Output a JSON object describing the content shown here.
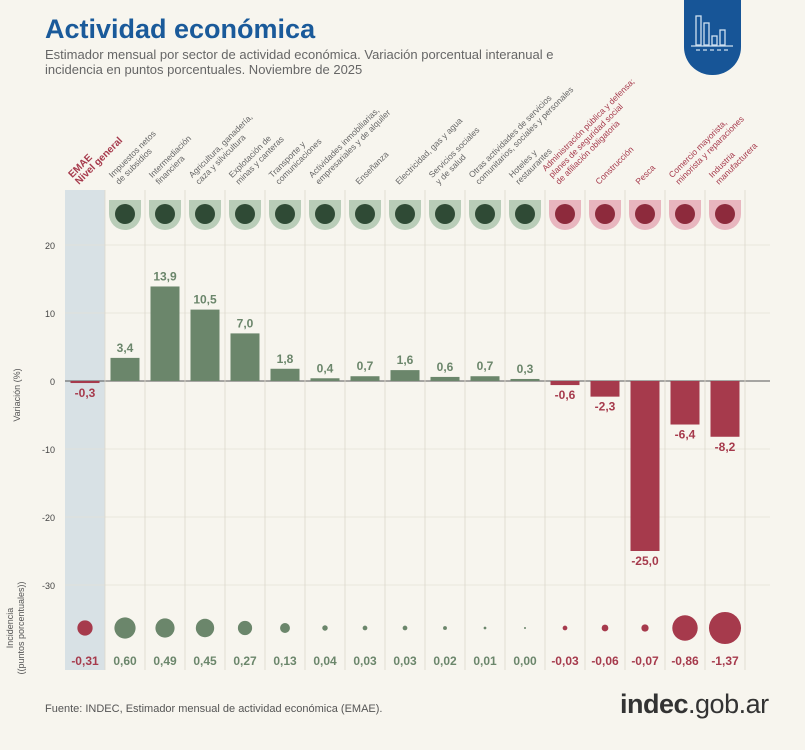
{
  "header": {
    "title": "Actividad económica",
    "subtitle": "Estimador mensual por sector de actividad económica. Variación porcentual interanual e incidencia en puntos porcentuales. Noviembre de 2025"
  },
  "footer": {
    "source": "Fuente: INDEC, Estimador mensual de actividad económica (EMAE).",
    "logo_main": "indec",
    "logo_suffix": ".gob.ar"
  },
  "colors": {
    "positive": "#6b866b",
    "negative": "#a63a4c",
    "highlight": "#d2dde3",
    "title": "#1a5a9a",
    "badge": "#175597"
  },
  "chart_data": {
    "type": "bar",
    "ylabel": "Variación (%)",
    "ylabel2": "Incidencia (puntos porcentuales)",
    "yticks": [
      20,
      10,
      0,
      -10,
      -20,
      -30
    ],
    "ylim": [
      -30,
      20
    ],
    "grid": true,
    "categories": [
      [
        "EMAE",
        "Nivel general"
      ],
      [
        "Impuestos netos",
        "de subsidios"
      ],
      [
        "Intermediación",
        "financiera"
      ],
      [
        "Agricultura, ganadería,",
        "caza y silvicultura"
      ],
      [
        "Explotación de",
        "minas y canteras"
      ],
      [
        "Transporte y",
        "comunicaciones"
      ],
      [
        "Actividades inmobiliarias,",
        "empresariales y de alquiler"
      ],
      [
        "Enseñanza"
      ],
      [
        "Electricidad, gas y agua"
      ],
      [
        "Servicios sociales",
        "y de salud"
      ],
      [
        "Otras actividades de servicios",
        "comunitarios, sociales y personales"
      ],
      [
        "Hoteles y",
        "restaurantes"
      ],
      [
        "Administración pública y defensa;",
        "planes de seguridad social",
        "de afiliación obligatoria"
      ],
      [
        "Construcción"
      ],
      [
        "Pesca"
      ],
      [
        "Comercio mayorista,",
        "minorista y reparaciones"
      ],
      [
        "Industria",
        "manufacturera"
      ]
    ],
    "values": [
      -0.3,
      3.4,
      13.9,
      10.5,
      7.0,
      1.8,
      0.4,
      0.7,
      1.6,
      0.6,
      0.7,
      0.3,
      -0.6,
      -2.3,
      -25.0,
      -6.4,
      -8.2
    ],
    "value_labels": [
      "-0,3",
      "3,4",
      "13,9",
      "10,5",
      "7,0",
      "1,8",
      "0,4",
      "0,7",
      "1,6",
      "0,6",
      "0,7",
      "0,3",
      "-0,6",
      "-2,3",
      "-25,0",
      "-6,4",
      "-8,2"
    ],
    "incidence": [
      -0.31,
      0.6,
      0.49,
      0.45,
      0.27,
      0.13,
      0.04,
      0.03,
      0.03,
      0.02,
      0.01,
      0.0,
      -0.03,
      -0.06,
      -0.07,
      -0.86,
      -1.37
    ],
    "incidence_labels": [
      "-0,31",
      "0,60",
      "0,49",
      "0,45",
      "0,27",
      "0,13",
      "0,04",
      "0,03",
      "0,03",
      "0,02",
      "0,01",
      "0,00",
      "-0,03",
      "-0,06",
      "-0,07",
      "-0,86",
      "-1,37"
    ]
  }
}
